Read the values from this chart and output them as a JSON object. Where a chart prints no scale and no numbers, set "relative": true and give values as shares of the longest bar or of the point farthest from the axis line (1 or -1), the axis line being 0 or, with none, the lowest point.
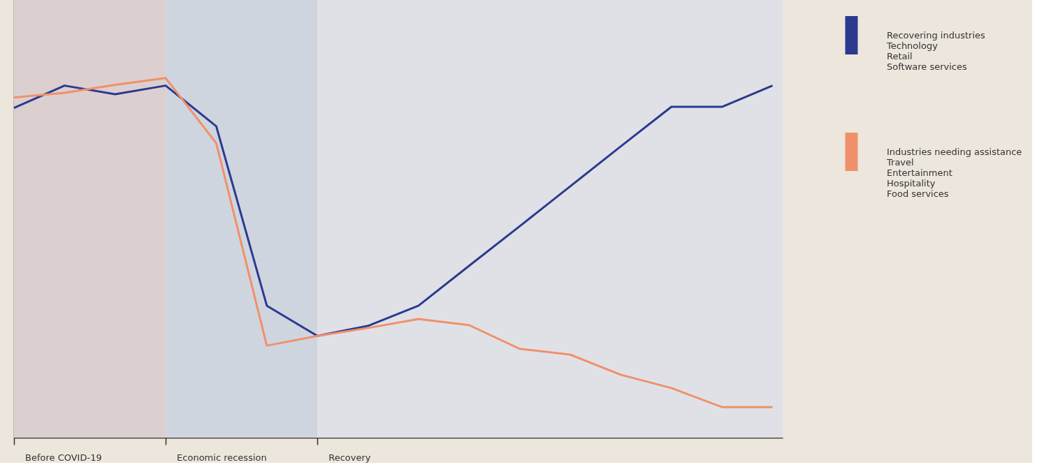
{
  "chart_data": {
    "type": "line",
    "relative": true,
    "categories": [
      null,
      null,
      null,
      null,
      null,
      null,
      null,
      null,
      null,
      null,
      null,
      null,
      null,
      null,
      null,
      null
    ],
    "series": [
      {
        "name": "Recovering industries\nTechnology\nRetail\nSoftware services",
        "color": "#2b3a8f",
        "values": [
          0.917,
          0.979,
          0.955,
          0.979,
          0.866,
          0.367,
          0.283,
          0.311,
          0.367,
          0.478,
          0.588,
          0.699,
          0.81,
          0.92,
          0.92,
          0.979
        ]
      },
      {
        "name": "Industries needing assistance\nTravel\nEntertainment\nHospitality\nFood services",
        "color": "#f0906a",
        "values": [
          0.946,
          0.959,
          0.981,
          1,
          0.819,
          0.256,
          0.283,
          0.305,
          0.33,
          0.313,
          0.247,
          0.231,
          0.175,
          0.138,
          0.085,
          0.085
        ]
      }
    ],
    "annotations": [
      "Before COVID-19",
      "Economic recession",
      "Recovery"
    ],
    "legend": "right",
    "marker": "none",
    "line_style": "solid"
  }
}
